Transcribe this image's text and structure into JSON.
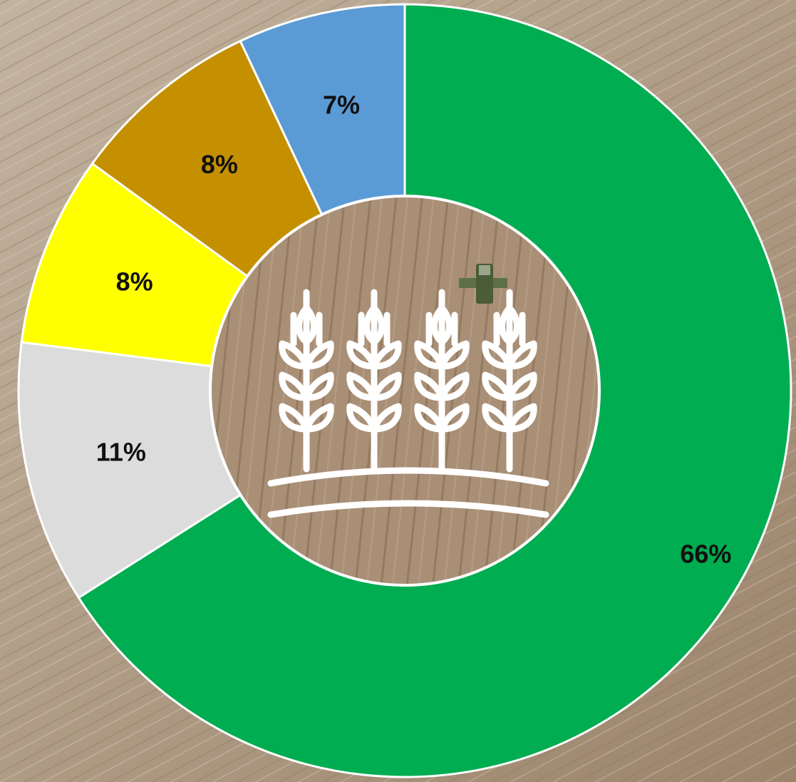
{
  "chart_data": {
    "type": "pie",
    "variant": "donut",
    "start": "top",
    "direction": "clockwise",
    "slices": [
      {
        "label": "66%",
        "value": 66,
        "color": "#00AD50"
      },
      {
        "label": "11%",
        "value": 11,
        "color": "#DCDCDC"
      },
      {
        "label": "8%",
        "value": 8,
        "color": "#FFFF00"
      },
      {
        "label": "8%",
        "value": 8,
        "color": "#C49000"
      },
      {
        "label": "7%",
        "value": 7,
        "color": "#5B9BD5"
      }
    ],
    "legend": "none",
    "center_icon": "wheat-stalks-icon"
  },
  "colors": {
    "field_light": "#c2b39f",
    "field_dark": "#9c846b",
    "field_inner": "#a98f76",
    "separator": "#ffffff",
    "icon": "#ffffff"
  }
}
